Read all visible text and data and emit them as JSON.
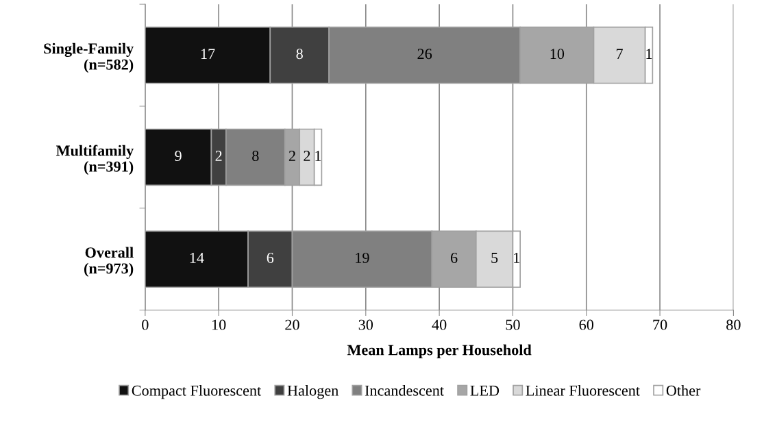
{
  "chart_data": {
    "type": "bar",
    "orientation": "horizontal",
    "stacked": true,
    "xlabel": "Mean Lamps per Household",
    "categories": [
      "Single-Family\n(n=582)",
      "Multifamily\n(n=391)",
      "Overall\n(n=973)"
    ],
    "series": [
      {
        "name": "Compact Fluorescent",
        "color": "#111111",
        "values": [
          17,
          9,
          14
        ]
      },
      {
        "name": "Halogen",
        "color": "#404040",
        "values": [
          8,
          2,
          6
        ]
      },
      {
        "name": "Incandescent",
        "color": "#808080",
        "values": [
          26,
          8,
          19
        ]
      },
      {
        "name": "LED",
        "color": "#a6a6a6",
        "values": [
          10,
          2,
          6
        ]
      },
      {
        "name": "Linear Fluorescent",
        "color": "#d9d9d9",
        "values": [
          7,
          2,
          5
        ]
      },
      {
        "name": "Other",
        "color": "#ffffff",
        "values": [
          1,
          1,
          1
        ]
      }
    ],
    "xlim": [
      0,
      80
    ],
    "xticks": [
      0,
      10,
      20,
      30,
      40,
      50,
      60,
      70,
      80
    ],
    "grid": "x",
    "legend": "bottom",
    "data_labels": true
  }
}
